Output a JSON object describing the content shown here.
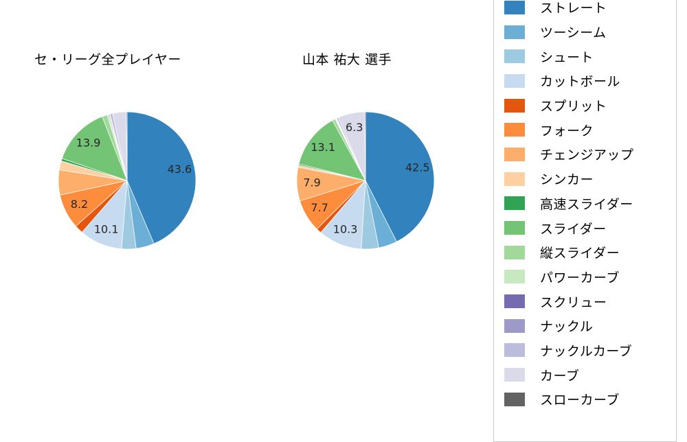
{
  "chart_data": [
    {
      "type": "pie",
      "title": "セ・リーグ全プレイヤー",
      "start_angle": "top",
      "direction": "clockwise",
      "label_threshold_pct": 6,
      "slices": [
        {
          "name": "ストレート",
          "value": 43.6,
          "labeled": true
        },
        {
          "name": "ツーシーム",
          "value": 4.3,
          "labeled": false
        },
        {
          "name": "シュート",
          "value": 3.4,
          "labeled": false
        },
        {
          "name": "カットボール",
          "value": 10.1,
          "labeled": true
        },
        {
          "name": "スプリット",
          "value": 2.0,
          "labeled": false
        },
        {
          "name": "フォーク",
          "value": 8.2,
          "labeled": true
        },
        {
          "name": "チェンジアップ",
          "value": 5.9,
          "labeled": false
        },
        {
          "name": "シンカー",
          "value": 2.1,
          "labeled": false
        },
        {
          "name": "高速スライダー",
          "value": 0.6,
          "labeled": false
        },
        {
          "name": "スライダー",
          "value": 13.9,
          "labeled": true
        },
        {
          "name": "縦スライダー",
          "value": 1.2,
          "labeled": false
        },
        {
          "name": "パワーカーブ",
          "value": 0.4,
          "labeled": false
        },
        {
          "name": "スクリュー",
          "value": 0.2,
          "labeled": false
        },
        {
          "name": "ナックル",
          "value": 0.1,
          "labeled": false
        },
        {
          "name": "ナックルカーブ",
          "value": 0.6,
          "labeled": false
        },
        {
          "name": "カーブ",
          "value": 3.2,
          "labeled": false
        },
        {
          "name": "スローカーブ",
          "value": 0.2,
          "labeled": false
        }
      ]
    },
    {
      "type": "pie",
      "title": "山本 祐大 選手",
      "start_angle": "top",
      "direction": "clockwise",
      "label_threshold_pct": 6,
      "slices": [
        {
          "name": "ストレート",
          "value": 42.5,
          "labeled": true
        },
        {
          "name": "ツーシーム",
          "value": 4.4,
          "labeled": false
        },
        {
          "name": "シュート",
          "value": 4.1,
          "labeled": false
        },
        {
          "name": "カットボール",
          "value": 10.3,
          "labeled": true
        },
        {
          "name": "スプリット",
          "value": 1.2,
          "labeled": false
        },
        {
          "name": "フォーク",
          "value": 7.7,
          "labeled": true
        },
        {
          "name": "チェンジアップ",
          "value": 7.9,
          "labeled": true
        },
        {
          "name": "シンカー",
          "value": 0.5,
          "labeled": false
        },
        {
          "name": "高速スライダー",
          "value": 0.3,
          "labeled": false
        },
        {
          "name": "スライダー",
          "value": 13.1,
          "labeled": true
        },
        {
          "name": "縦スライダー",
          "value": 0.7,
          "labeled": false
        },
        {
          "name": "パワーカーブ",
          "value": 0.2,
          "labeled": false
        },
        {
          "name": "スクリュー",
          "value": 0.1,
          "labeled": false
        },
        {
          "name": "ナックル",
          "value": 0.1,
          "labeled": false
        },
        {
          "name": "ナックルカーブ",
          "value": 0.4,
          "labeled": false
        },
        {
          "name": "カーブ",
          "value": 6.3,
          "labeled": true
        },
        {
          "name": "スローカーブ",
          "value": 0.2,
          "labeled": false
        }
      ]
    }
  ],
  "legend": {
    "position": "right",
    "items": [
      {
        "label": "ストレート",
        "color": "#3182bd"
      },
      {
        "label": "ツーシーム",
        "color": "#6baed6"
      },
      {
        "label": "シュート",
        "color": "#9ecae1"
      },
      {
        "label": "カットボール",
        "color": "#c6dbef"
      },
      {
        "label": "スプリット",
        "color": "#e6550d"
      },
      {
        "label": "フォーク",
        "color": "#fd8d3c"
      },
      {
        "label": "チェンジアップ",
        "color": "#fdae6b"
      },
      {
        "label": "シンカー",
        "color": "#fdd0a2"
      },
      {
        "label": "高速スライダー",
        "color": "#31a354"
      },
      {
        "label": "スライダー",
        "color": "#74c476"
      },
      {
        "label": "縦スライダー",
        "color": "#a1d99b"
      },
      {
        "label": "パワーカーブ",
        "color": "#c7e9c0"
      },
      {
        "label": "スクリュー",
        "color": "#756bb1"
      },
      {
        "label": "ナックル",
        "color": "#9e9ac8"
      },
      {
        "label": "ナックルカーブ",
        "color": "#bcbddc"
      },
      {
        "label": "カーブ",
        "color": "#dadaeb"
      },
      {
        "label": "スローカーブ",
        "color": "#636363"
      }
    ]
  }
}
